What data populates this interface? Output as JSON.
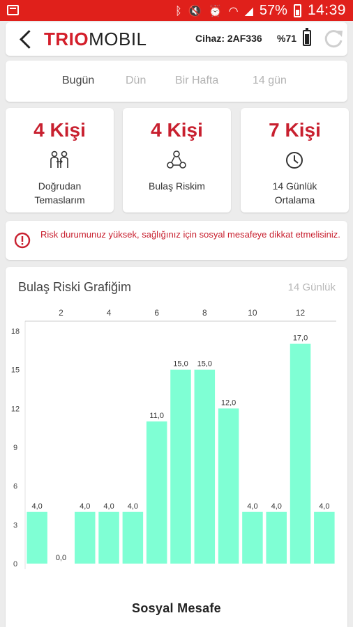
{
  "status_bar": {
    "battery": "57%",
    "time": "14:39",
    "background": "#e0201b"
  },
  "header": {
    "brand_part1": "TRIO",
    "brand_part2": "MOBIL",
    "device": "Cihaz: 2AF336",
    "battery": "%71"
  },
  "tabs": [
    {
      "label": "Bugün",
      "active": true
    },
    {
      "label": "Dün",
      "active": false
    },
    {
      "label": "Bir Hafta",
      "active": false
    },
    {
      "label": "14 gün",
      "active": false
    }
  ],
  "stats": [
    {
      "value": "4 Kişi",
      "label": "Doğrudan\nTemaslarım",
      "icon": "people-contact-icon"
    },
    {
      "value": "4 Kişi",
      "label": "Bulaş Riskim",
      "icon": "network-people-icon"
    },
    {
      "value": "7 Kişi",
      "label": "14 Günlük\nOrtalama",
      "icon": "clock-icon"
    }
  ],
  "alert": {
    "text": "Risk durumunuz yüksek, sağlığınız için sosyal mesafeye dikkat etmelisiniz.",
    "icon": "alert-circle-icon",
    "color": "#c8202f"
  },
  "chart": {
    "title": "Bulaş Riski Grafiğim",
    "period": "14 Günlük",
    "footer": "Sosyal Mesafe"
  },
  "chart_data": {
    "type": "bar",
    "categories": [
      1,
      2,
      3,
      4,
      5,
      6,
      7,
      8,
      9,
      10,
      11,
      12,
      13
    ],
    "x_tick_labels": [
      "2",
      "4",
      "6",
      "8",
      "10",
      "12"
    ],
    "x_tick_positions": [
      2,
      4,
      6,
      8,
      10,
      12
    ],
    "values": [
      4.0,
      0.0,
      4.0,
      4.0,
      4.0,
      11.0,
      15.0,
      15.0,
      12.0,
      4.0,
      4.0,
      17.0,
      4.0
    ],
    "data_labels": [
      "4,0",
      "0,0",
      "4,0",
      "4,0",
      "4,0",
      "11,0",
      "15,0",
      "15,0",
      "12,0",
      "4,0",
      "4,0",
      "17,0",
      "4,0"
    ],
    "y_ticks": [
      "0",
      "3",
      "6",
      "9",
      "12",
      "15",
      "18"
    ],
    "ylim": [
      0,
      18
    ],
    "bar_color": "#7fffd4",
    "grid": false
  }
}
